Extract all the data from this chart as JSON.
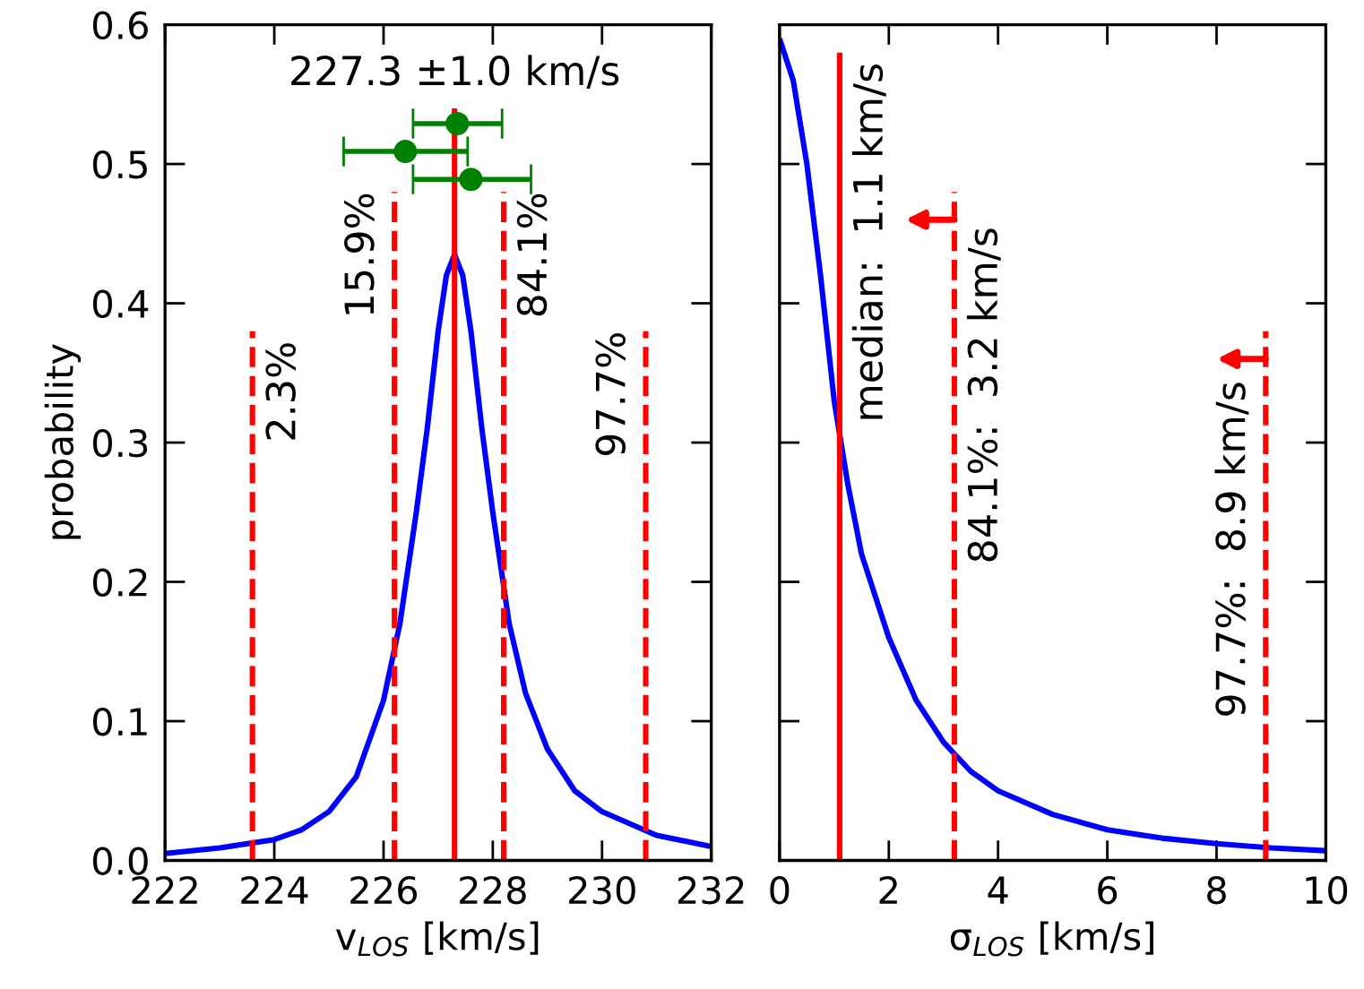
{
  "chart_data": [
    {
      "type": "line",
      "xlabel": "v$_{LOS}$ [km/s]",
      "ylabel": "probability",
      "xlim": [
        222,
        232
      ],
      "xticks": [
        222,
        224,
        226,
        228,
        230,
        232
      ],
      "ylim": [
        0,
        0.6
      ],
      "yticks": [
        {
          "value": 0,
          "label": "0.0"
        },
        0.1,
        0.2,
        0.3,
        0.4,
        0.5,
        0.6
      ],
      "grid": false,
      "series": [
        {
          "type": "line",
          "color": "#0000ff",
          "line_style": "solid",
          "x": [
            222,
            223,
            224,
            224.5,
            225,
            225.5,
            226,
            226.3,
            226.6,
            226.8,
            227,
            227.15,
            227.3,
            227.45,
            227.6,
            227.8,
            228,
            228.3,
            228.6,
            229,
            229.5,
            230,
            231,
            232
          ],
          "values": [
            0.005,
            0.009,
            0.015,
            0.022,
            0.035,
            0.06,
            0.115,
            0.17,
            0.25,
            0.31,
            0.38,
            0.42,
            0.435,
            0.42,
            0.38,
            0.31,
            0.25,
            0.17,
            0.12,
            0.08,
            0.05,
            0.035,
            0.018,
            0.01
          ]
        },
        {
          "type": "line",
          "color": "#ff0000",
          "line_style": "dashed",
          "x": [
            223.6,
            223.6
          ],
          "values": [
            0,
            0.38
          ]
        },
        {
          "type": "line",
          "color": "#ff0000",
          "line_style": "dashed",
          "x": [
            226.2,
            226.2
          ],
          "values": [
            0,
            0.48
          ]
        },
        {
          "type": "line",
          "color": "#ff0000",
          "line_style": "solid",
          "x": [
            227.3,
            227.3
          ],
          "values": [
            0,
            0.54
          ]
        },
        {
          "type": "line",
          "color": "#ff0000",
          "line_style": "dashed",
          "x": [
            228.2,
            228.2
          ],
          "values": [
            0,
            0.48
          ]
        },
        {
          "type": "line",
          "color": "#ff0000",
          "line_style": "dashed",
          "x": [
            230.8,
            230.8
          ],
          "values": [
            0,
            0.38
          ]
        },
        {
          "type": "scatter",
          "color": "#008000",
          "marker": "circle",
          "x": [
            227.35,
            226.4,
            227.6
          ],
          "values": [
            0.529,
            0.509,
            0.489
          ],
          "xerrors": [
            [
              226.54,
              228.17
            ],
            [
              225.27,
              227.54
            ],
            [
              226.54,
              228.7
            ]
          ]
        }
      ],
      "annotations": [
        {
          "text": "227.3 ±1.0 km/s",
          "x": 227.3,
          "y": 0.54
        },
        {
          "text": "2.3%",
          "x": 223.6,
          "y": 0.38
        },
        {
          "text": "15.9%",
          "x": 226.2,
          "y": 0.48
        },
        {
          "text": "84.1%",
          "x": 228.2,
          "y": 0.48
        },
        {
          "text": "97.7%",
          "x": 230.8,
          "y": 0.38
        }
      ]
    },
    {
      "type": "line",
      "xlabel": "σ$_{LOS}$ [km/s]",
      "xlim": [
        0,
        10
      ],
      "xticks": [
        0,
        2,
        4,
        6,
        8,
        10
      ],
      "ylim": [
        0,
        0.6
      ],
      "yticks": [
        0,
        0.1,
        0.2,
        0.3,
        0.4,
        0.5,
        0.6
      ],
      "tick_labels": "x",
      "grid": false,
      "series": [
        {
          "type": "line",
          "color": "#0000ff",
          "line_style": "solid",
          "x": [
            0,
            0.25,
            0.5,
            0.75,
            1,
            1.25,
            1.5,
            2,
            2.5,
            3,
            3.5,
            4,
            5,
            6,
            7,
            8,
            9,
            10
          ],
          "values": [
            0.59,
            0.56,
            0.5,
            0.42,
            0.33,
            0.27,
            0.22,
            0.16,
            0.115,
            0.085,
            0.064,
            0.05,
            0.033,
            0.022,
            0.016,
            0.012,
            0.009,
            0.007
          ]
        },
        {
          "type": "line",
          "color": "#ff0000",
          "line_style": "solid",
          "x": [
            1.1,
            1.1
          ],
          "values": [
            0,
            0.58
          ]
        },
        {
          "type": "line",
          "color": "#ff0000",
          "line_style": "dashed",
          "x": [
            3.2,
            3.2
          ],
          "values": [
            0,
            0.48
          ]
        },
        {
          "type": "line",
          "color": "#ff0000",
          "line_style": "dashed",
          "x": [
            8.9,
            8.9
          ],
          "values": [
            0,
            0.38
          ]
        }
      ],
      "annotations": [
        {
          "text": "median:  1.1 km/s",
          "x": 1.1,
          "y": 0.58
        },
        {
          "text": "84.1%:  3.2 km/s",
          "x": 3.2,
          "y": 0.48
        },
        {
          "text": "97.7%:  8.9 km/s",
          "x": 8.9,
          "y": 0.38
        }
      ]
    }
  ]
}
